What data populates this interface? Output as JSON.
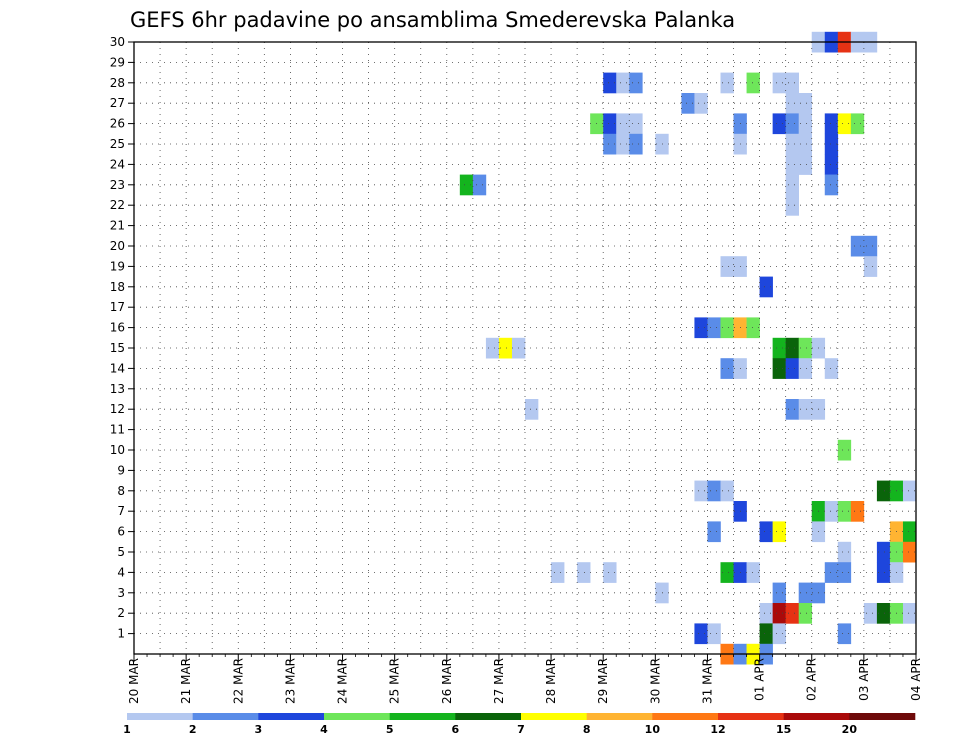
{
  "chart_data": {
    "type": "heatmap",
    "title": "GEFS 6hr padavine po ansamblima Smederevska Palanka",
    "xlabel": "",
    "ylabel": "",
    "x_tick_labels": [
      "20 MAR",
      "21 MAR",
      "22 MAR",
      "23 MAR",
      "24 MAR",
      "25 MAR",
      "26 MAR",
      "27 MAR",
      "28 MAR",
      "29 MAR",
      "30 MAR",
      "31 MAR",
      "01 APR",
      "02 APR",
      "03 APR",
      "04 APR"
    ],
    "x_range_days": [
      0,
      15
    ],
    "y_tick_labels": [
      "1",
      "2",
      "3",
      "4",
      "5",
      "6",
      "7",
      "8",
      "9",
      "10",
      "11",
      "12",
      "13",
      "14",
      "15",
      "16",
      "17",
      "18",
      "19",
      "20",
      "21",
      "22",
      "23",
      "24",
      "25",
      "26",
      "27",
      "28",
      "29",
      "30"
    ],
    "y_range": [
      0,
      30
    ],
    "grid": true,
    "colorbar": {
      "placement": "bottom",
      "labels": [
        "1",
        "2",
        "3",
        "4",
        "5",
        "6",
        "7",
        "8",
        "10",
        "12",
        "15",
        "20"
      ],
      "colors": [
        "#b4c8f0",
        "#5a8ce8",
        "#1e46dc",
        "#6ee65a",
        "#14b41e",
        "#0a640a",
        "#ffff00",
        "#ffb432",
        "#ff7814",
        "#e63214",
        "#aa0a0a",
        "#6e0a0a"
      ]
    },
    "cells": [
      {
        "member": 30,
        "day": 13.0,
        "level": 1
      },
      {
        "member": 30,
        "day": 13.25,
        "level": 3
      },
      {
        "member": 30,
        "day": 13.5,
        "level": 10
      },
      {
        "member": 30,
        "day": 13.75,
        "level": 1
      },
      {
        "member": 30,
        "day": 14.0,
        "level": 1
      },
      {
        "member": 28,
        "day": 9.0,
        "level": 3
      },
      {
        "member": 28,
        "day": 9.25,
        "level": 1
      },
      {
        "member": 28,
        "day": 9.5,
        "level": 2
      },
      {
        "member": 28,
        "day": 11.25,
        "level": 1
      },
      {
        "member": 28,
        "day": 11.75,
        "level": 4
      },
      {
        "member": 28,
        "day": 12.25,
        "level": 1
      },
      {
        "member": 28,
        "day": 12.5,
        "level": 1
      },
      {
        "member": 27,
        "day": 10.5,
        "level": 2
      },
      {
        "member": 27,
        "day": 10.75,
        "level": 1
      },
      {
        "member": 27,
        "day": 12.5,
        "level": 1
      },
      {
        "member": 27,
        "day": 12.75,
        "level": 1
      },
      {
        "member": 26,
        "day": 8.75,
        "level": 4
      },
      {
        "member": 26,
        "day": 9.0,
        "level": 3
      },
      {
        "member": 26,
        "day": 9.25,
        "level": 1
      },
      {
        "member": 26,
        "day": 9.5,
        "level": 1
      },
      {
        "member": 26,
        "day": 11.5,
        "level": 2
      },
      {
        "member": 26,
        "day": 12.25,
        "level": 3
      },
      {
        "member": 26,
        "day": 12.5,
        "level": 2
      },
      {
        "member": 26,
        "day": 12.75,
        "level": 1
      },
      {
        "member": 26,
        "day": 13.25,
        "level": 3
      },
      {
        "member": 26,
        "day": 13.5,
        "level": 7
      },
      {
        "member": 26,
        "day": 13.75,
        "level": 4
      },
      {
        "member": 25,
        "day": 9.0,
        "level": 2
      },
      {
        "member": 25,
        "day": 9.25,
        "level": 1
      },
      {
        "member": 25,
        "day": 9.5,
        "level": 2
      },
      {
        "member": 25,
        "day": 10.0,
        "level": 1
      },
      {
        "member": 25,
        "day": 11.5,
        "level": 1
      },
      {
        "member": 25,
        "day": 12.5,
        "level": 1
      },
      {
        "member": 25,
        "day": 12.75,
        "level": 1
      },
      {
        "member": 25,
        "day": 13.25,
        "level": 3
      },
      {
        "member": 24,
        "day": 12.5,
        "level": 1
      },
      {
        "member": 24,
        "day": 12.75,
        "level": 1
      },
      {
        "member": 24,
        "day": 13.25,
        "level": 3
      },
      {
        "member": 23,
        "day": 6.25,
        "level": 5
      },
      {
        "member": 23,
        "day": 6.5,
        "level": 2
      },
      {
        "member": 23,
        "day": 12.5,
        "level": 1
      },
      {
        "member": 23,
        "day": 13.25,
        "level": 2
      },
      {
        "member": 22,
        "day": 12.5,
        "level": 1
      },
      {
        "member": 20,
        "day": 13.75,
        "level": 2
      },
      {
        "member": 20,
        "day": 14.0,
        "level": 2
      },
      {
        "member": 19,
        "day": 11.25,
        "level": 1
      },
      {
        "member": 19,
        "day": 11.5,
        "level": 1
      },
      {
        "member": 19,
        "day": 14.0,
        "level": 1
      },
      {
        "member": 18,
        "day": 12.0,
        "level": 3
      },
      {
        "member": 16,
        "day": 10.75,
        "level": 3
      },
      {
        "member": 16,
        "day": 11.0,
        "level": 2
      },
      {
        "member": 16,
        "day": 11.25,
        "level": 4
      },
      {
        "member": 16,
        "day": 11.5,
        "level": 8
      },
      {
        "member": 16,
        "day": 11.75,
        "level": 4
      },
      {
        "member": 15,
        "day": 6.75,
        "level": 1
      },
      {
        "member": 15,
        "day": 7.0,
        "level": 7
      },
      {
        "member": 15,
        "day": 7.25,
        "level": 1
      },
      {
        "member": 15,
        "day": 12.25,
        "level": 5
      },
      {
        "member": 15,
        "day": 12.5,
        "level": 6
      },
      {
        "member": 15,
        "day": 12.75,
        "level": 4
      },
      {
        "member": 15,
        "day": 13.0,
        "level": 1
      },
      {
        "member": 14,
        "day": 11.25,
        "level": 2
      },
      {
        "member": 14,
        "day": 11.5,
        "level": 1
      },
      {
        "member": 14,
        "day": 12.25,
        "level": 6
      },
      {
        "member": 14,
        "day": 12.5,
        "level": 3
      },
      {
        "member": 14,
        "day": 12.75,
        "level": 1
      },
      {
        "member": 14,
        "day": 13.25,
        "level": 1
      },
      {
        "member": 12,
        "day": 7.5,
        "level": 1
      },
      {
        "member": 12,
        "day": 12.5,
        "level": 2
      },
      {
        "member": 12,
        "day": 12.75,
        "level": 1
      },
      {
        "member": 12,
        "day": 13.0,
        "level": 1
      },
      {
        "member": 10,
        "day": 13.5,
        "level": 4
      },
      {
        "member": 8,
        "day": 10.75,
        "level": 1
      },
      {
        "member": 8,
        "day": 11.0,
        "level": 2
      },
      {
        "member": 8,
        "day": 11.25,
        "level": 1
      },
      {
        "member": 8,
        "day": 14.25,
        "level": 6
      },
      {
        "member": 8,
        "day": 14.5,
        "level": 5
      },
      {
        "member": 8,
        "day": 14.75,
        "level": 1
      },
      {
        "member": 7,
        "day": 11.5,
        "level": 3
      },
      {
        "member": 7,
        "day": 13.0,
        "level": 5
      },
      {
        "member": 7,
        "day": 13.25,
        "level": 1
      },
      {
        "member": 7,
        "day": 13.5,
        "level": 4
      },
      {
        "member": 7,
        "day": 13.75,
        "level": 9
      },
      {
        "member": 6,
        "day": 11.0,
        "level": 2
      },
      {
        "member": 6,
        "day": 12.0,
        "level": 3
      },
      {
        "member": 6,
        "day": 12.25,
        "level": 7
      },
      {
        "member": 6,
        "day": 13.0,
        "level": 1
      },
      {
        "member": 6,
        "day": 14.5,
        "level": 8
      },
      {
        "member": 6,
        "day": 14.75,
        "level": 5
      },
      {
        "member": 5,
        "day": 13.5,
        "level": 1
      },
      {
        "member": 5,
        "day": 14.25,
        "level": 3
      },
      {
        "member": 5,
        "day": 14.5,
        "level": 4
      },
      {
        "member": 5,
        "day": 14.75,
        "level": 9
      },
      {
        "member": 4,
        "day": 8.0,
        "level": 1
      },
      {
        "member": 4,
        "day": 8.5,
        "level": 1
      },
      {
        "member": 4,
        "day": 9.0,
        "level": 1
      },
      {
        "member": 4,
        "day": 11.25,
        "level": 5
      },
      {
        "member": 4,
        "day": 11.5,
        "level": 3
      },
      {
        "member": 4,
        "day": 11.75,
        "level": 1
      },
      {
        "member": 4,
        "day": 13.25,
        "level": 2
      },
      {
        "member": 4,
        "day": 13.5,
        "level": 2
      },
      {
        "member": 4,
        "day": 14.25,
        "level": 3
      },
      {
        "member": 4,
        "day": 14.5,
        "level": 1
      },
      {
        "member": 3,
        "day": 10.0,
        "level": 1
      },
      {
        "member": 3,
        "day": 12.25,
        "level": 2
      },
      {
        "member": 3,
        "day": 12.75,
        "level": 2
      },
      {
        "member": 3,
        "day": 13.0,
        "level": 2
      },
      {
        "member": 2,
        "day": 12.0,
        "level": 1
      },
      {
        "member": 2,
        "day": 12.25,
        "level": 11
      },
      {
        "member": 2,
        "day": 12.5,
        "level": 10
      },
      {
        "member": 2,
        "day": 12.75,
        "level": 4
      },
      {
        "member": 2,
        "day": 14.0,
        "level": 1
      },
      {
        "member": 2,
        "day": 14.25,
        "level": 6
      },
      {
        "member": 2,
        "day": 14.5,
        "level": 4
      },
      {
        "member": 2,
        "day": 14.75,
        "level": 1
      },
      {
        "member": 1,
        "day": 10.75,
        "level": 3
      },
      {
        "member": 1,
        "day": 11.0,
        "level": 1
      },
      {
        "member": 1,
        "day": 12.0,
        "level": 6
      },
      {
        "member": 1,
        "day": 12.25,
        "level": 1
      },
      {
        "member": 1,
        "day": 13.5,
        "level": 2
      },
      {
        "member": 0,
        "day": 11.25,
        "level": 9
      },
      {
        "member": 0,
        "day": 11.5,
        "level": 2
      },
      {
        "member": 0,
        "day": 11.75,
        "level": 7
      },
      {
        "member": 0,
        "day": 12.0,
        "level": 2
      }
    ]
  }
}
